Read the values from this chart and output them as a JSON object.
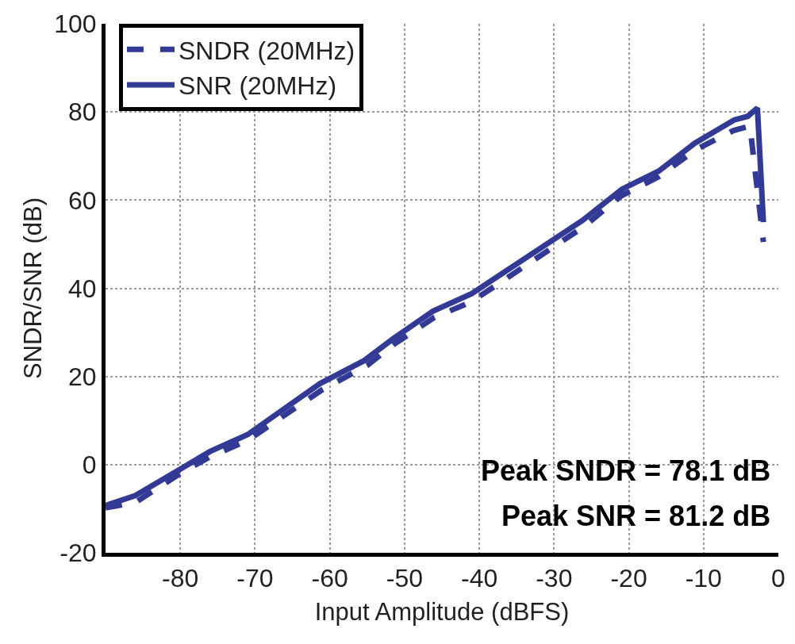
{
  "chart_data": {
    "type": "line",
    "xlabel": "Input Amplitude (dBFS)",
    "ylabel": "SNDR/SNR (dB)",
    "xlim": [
      -90,
      0
    ],
    "xticks": [
      -80,
      -70,
      -60,
      -50,
      -40,
      -30,
      -20,
      -10,
      0
    ],
    "ylim": [
      -20,
      100
    ],
    "yticks": [
      -20,
      0,
      20,
      40,
      60,
      80,
      100
    ],
    "grid": true,
    "legend": "top left",
    "marker": "none",
    "series": [
      {
        "name": "SNDR (20MHz)",
        "color": "#333a96",
        "line_style": "dashed",
        "x": [
          -90,
          -86,
          -80,
          -76,
          -71,
          -61,
          -55,
          -51.5,
          -46,
          -41,
          -26,
          -21,
          -16,
          -11,
          -6,
          -3.8,
          -2
        ],
        "values": [
          -9.8,
          -8.6,
          -2,
          1.8,
          5.5,
          17,
          22.5,
          27.2,
          33.4,
          37,
          54,
          61,
          65.3,
          71.5,
          75.8,
          76.8,
          50.5
        ]
      },
      {
        "name": "SNR (20MHz)",
        "color": "#333a96",
        "line_style": "solid",
        "x": [
          -90,
          -86,
          -80,
          -76,
          -71,
          -61.3,
          -55.4,
          -51.5,
          -46.2,
          -41,
          -26.2,
          -20.9,
          -16,
          -11.2,
          -5.9,
          -4.1,
          -2.8,
          -2
        ],
        "values": [
          -9.3,
          -7,
          -1,
          3,
          6.8,
          18.4,
          23.6,
          28.6,
          34.8,
          38.8,
          55.4,
          62.5,
          66.6,
          72.9,
          78.2,
          79,
          80.9,
          55
        ]
      }
    ],
    "annotations": [
      "Peak SNDR = 78.1 dB",
      "Peak SNR = 81.2 dB"
    ]
  }
}
